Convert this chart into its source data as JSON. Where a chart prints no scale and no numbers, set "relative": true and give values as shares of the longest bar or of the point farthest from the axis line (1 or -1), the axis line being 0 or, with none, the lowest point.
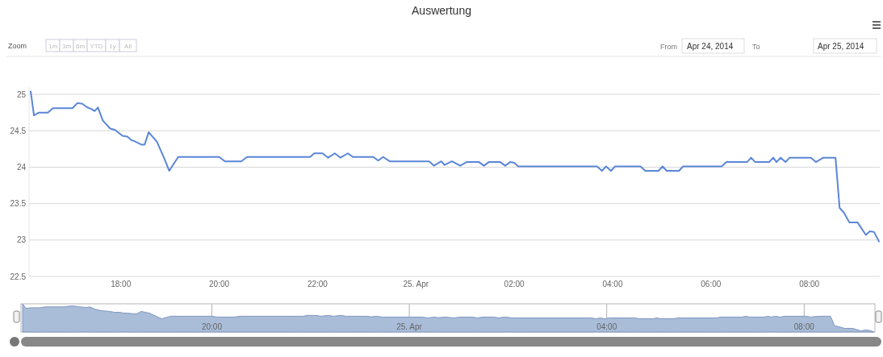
{
  "chart_data": [
    {
      "type": "line",
      "title": "Auswertung",
      "annotations": [
        "Zoom",
        "1m",
        "3m",
        "6m",
        "YTD",
        "1y",
        "All",
        "From",
        "Apr 24, 2014",
        "To",
        "Apr 25, 2014"
      ],
      "x": [
        "2014-04-24T16:10",
        "2014-04-24T16:14",
        "2014-04-24T16:20",
        "2014-04-24T16:31",
        "2014-04-24T16:37",
        "2014-04-24T17:01",
        "2014-04-24T17:07",
        "2014-04-24T17:13",
        "2014-04-24T17:19",
        "2014-04-24T17:24",
        "2014-04-24T17:28",
        "2014-04-24T17:32",
        "2014-04-24T17:38",
        "2014-04-24T17:47",
        "2014-04-24T17:53",
        "2014-04-24T18:02",
        "2014-04-24T18:08",
        "2014-04-24T18:13",
        "2014-04-24T18:16",
        "2014-04-24T18:25",
        "2014-04-24T18:29",
        "2014-04-24T18:34",
        "2014-04-24T18:44",
        "2014-04-24T18:53",
        "2014-04-24T18:59",
        "2014-04-24T19:10",
        "2014-04-24T20:00",
        "2014-04-24T20:07",
        "2014-04-24T20:27",
        "2014-04-24T20:34",
        "2014-04-24T21:51",
        "2014-04-24T21:56",
        "2014-04-24T22:06",
        "2014-04-24T22:13",
        "2014-04-24T22:21",
        "2014-04-24T22:28",
        "2014-04-24T22:37",
        "2014-04-24T22:43",
        "2014-04-24T23:08",
        "2014-04-24T23:14",
        "2014-04-24T23:20",
        "2014-04-24T23:28",
        "2014-04-25T00:16",
        "2014-04-25T00:22",
        "2014-04-25T00:31",
        "2014-04-25T00:35",
        "2014-04-25T00:44",
        "2014-04-25T00:54",
        "2014-04-25T01:02",
        "2014-04-25T01:17",
        "2014-04-25T01:23",
        "2014-04-25T01:29",
        "2014-04-25T01:43",
        "2014-04-25T01:49",
        "2014-04-25T01:55",
        "2014-04-25T02:00",
        "2014-04-25T02:05",
        "2014-04-25T03:41",
        "2014-04-25T03:47",
        "2014-04-25T03:52",
        "2014-04-25T03:58",
        "2014-04-25T04:03",
        "2014-04-25T04:34",
        "2014-04-25T04:40",
        "2014-04-25T04:56",
        "2014-04-25T05:01",
        "2014-04-25T05:06",
        "2014-04-25T05:21",
        "2014-04-25T05:26",
        "2014-04-25T06:13",
        "2014-04-25T06:19",
        "2014-04-25T06:44",
        "2014-04-25T06:49",
        "2014-04-25T06:54",
        "2014-04-25T07:11",
        "2014-04-25T07:16",
        "2014-04-25T07:20",
        "2014-04-25T07:25",
        "2014-04-25T07:31",
        "2014-04-25T07:36",
        "2014-04-25T08:02",
        "2014-04-25T08:08",
        "2014-04-25T08:17",
        "2014-04-25T08:32",
        "2014-04-25T08:37",
        "2014-04-25T08:42",
        "2014-04-25T08:49",
        "2014-04-25T08:59",
        "2014-04-25T09:09",
        "2014-04-25T09:14",
        "2014-04-25T09:19",
        "2014-04-25T09:25"
      ],
      "series": [
        {
          "color": "#5b86d6",
          "values": [
            25.04,
            24.71,
            24.75,
            24.75,
            24.81,
            24.81,
            24.88,
            24.87,
            24.82,
            24.8,
            24.77,
            24.82,
            24.64,
            24.53,
            24.51,
            24.43,
            24.42,
            24.37,
            24.36,
            24.31,
            24.31,
            24.48,
            24.35,
            24.12,
            23.95,
            24.14,
            24.14,
            24.08,
            24.08,
            24.14,
            24.14,
            24.19,
            24.19,
            24.13,
            24.19,
            24.13,
            24.19,
            24.14,
            24.14,
            24.09,
            24.14,
            24.08,
            24.08,
            24.02,
            24.08,
            24.03,
            24.08,
            24.02,
            24.07,
            24.07,
            24.02,
            24.07,
            24.07,
            24.02,
            24.07,
            24.06,
            24.01,
            24.01,
            23.95,
            24.01,
            23.95,
            24.01,
            24.01,
            23.95,
            23.95,
            24.01,
            23.95,
            23.95,
            24.01,
            24.01,
            24.07,
            24.07,
            24.13,
            24.07,
            24.07,
            24.13,
            24.07,
            24.13,
            24.07,
            24.13,
            24.13,
            24.07,
            24.13,
            24.13,
            23.44,
            23.38,
            23.24,
            23.24,
            23.07,
            23.12,
            23.11,
            22.98
          ]
        }
      ],
      "xlim": [
        "2014-04-24T16:08",
        "2014-04-25T09:26"
      ],
      "ylim": [
        22.5,
        25.1
      ],
      "xticks": [
        {
          "value": "2014-04-24T18:00",
          "label": "18:00"
        },
        {
          "value": "2014-04-24T20:00",
          "label": "20:00"
        },
        {
          "value": "2014-04-24T22:00",
          "label": "22:00"
        },
        {
          "value": "2014-04-25T00:00",
          "label": "25. Apr"
        },
        {
          "value": "2014-04-25T02:00",
          "label": "02:00"
        },
        {
          "value": "2014-04-25T04:00",
          "label": "04:00"
        },
        {
          "value": "2014-04-25T06:00",
          "label": "06:00"
        },
        {
          "value": "2014-04-25T08:00",
          "label": "08:00"
        }
      ],
      "yticks": [
        22.5,
        23,
        23.5,
        24,
        24.5,
        25
      ],
      "grid": "y",
      "marker": "none",
      "line_style": "solid"
    },
    {
      "type": "area",
      "relative": true,
      "x": [
        "2014-04-24T16:10",
        "2014-04-24T16:14",
        "2014-04-24T16:20",
        "2014-04-24T16:31",
        "2014-04-24T16:37",
        "2014-04-24T17:01",
        "2014-04-24T17:07",
        "2014-04-24T17:13",
        "2014-04-24T17:19",
        "2014-04-24T17:24",
        "2014-04-24T17:28",
        "2014-04-24T17:32",
        "2014-04-24T17:38",
        "2014-04-24T17:47",
        "2014-04-24T17:53",
        "2014-04-24T18:02",
        "2014-04-24T18:08",
        "2014-04-24T18:13",
        "2014-04-24T18:16",
        "2014-04-24T18:25",
        "2014-04-24T18:29",
        "2014-04-24T18:34",
        "2014-04-24T18:44",
        "2014-04-24T18:53",
        "2014-04-24T18:59",
        "2014-04-24T19:10",
        "2014-04-24T20:00",
        "2014-04-24T20:07",
        "2014-04-24T20:27",
        "2014-04-24T20:34",
        "2014-04-24T21:51",
        "2014-04-24T21:56",
        "2014-04-24T22:06",
        "2014-04-24T22:13",
        "2014-04-24T22:21",
        "2014-04-24T22:28",
        "2014-04-24T22:37",
        "2014-04-24T22:43",
        "2014-04-24T23:08",
        "2014-04-24T23:14",
        "2014-04-24T23:20",
        "2014-04-24T23:28",
        "2014-04-25T00:16",
        "2014-04-25T00:22",
        "2014-04-25T00:31",
        "2014-04-25T00:35",
        "2014-04-25T00:44",
        "2014-04-25T00:54",
        "2014-04-25T01:02",
        "2014-04-25T01:17",
        "2014-04-25T01:23",
        "2014-04-25T01:29",
        "2014-04-25T01:43",
        "2014-04-25T01:49",
        "2014-04-25T01:55",
        "2014-04-25T02:00",
        "2014-04-25T02:05",
        "2014-04-25T03:41",
        "2014-04-25T03:47",
        "2014-04-25T03:52",
        "2014-04-25T03:58",
        "2014-04-25T04:03",
        "2014-04-25T04:34",
        "2014-04-25T04:40",
        "2014-04-25T04:56",
        "2014-04-25T05:01",
        "2014-04-25T05:06",
        "2014-04-25T05:21",
        "2014-04-25T05:26",
        "2014-04-25T06:13",
        "2014-04-25T06:19",
        "2014-04-25T06:44",
        "2014-04-25T06:49",
        "2014-04-25T06:54",
        "2014-04-25T07:11",
        "2014-04-25T07:16",
        "2014-04-25T07:20",
        "2014-04-25T07:25",
        "2014-04-25T07:31",
        "2014-04-25T07:36",
        "2014-04-25T08:02",
        "2014-04-25T08:08",
        "2014-04-25T08:17",
        "2014-04-25T08:32",
        "2014-04-25T08:37",
        "2014-04-25T08:42",
        "2014-04-25T08:49",
        "2014-04-25T08:59",
        "2014-04-25T09:09",
        "2014-04-25T09:14",
        "2014-04-25T09:19",
        "2014-04-25T09:25"
      ],
      "series": [
        {
          "color": "#a9bcd8",
          "values": [
            1,
            0.84,
            0.86,
            0.86,
            0.89,
            0.89,
            0.92,
            0.92,
            0.89,
            0.88,
            0.87,
            0.89,
            0.81,
            0.75,
            0.74,
            0.7,
            0.7,
            0.67,
            0.67,
            0.65,
            0.65,
            0.73,
            0.67,
            0.55,
            0.47,
            0.56,
            0.56,
            0.53,
            0.53,
            0.56,
            0.56,
            0.59,
            0.59,
            0.56,
            0.59,
            0.56,
            0.59,
            0.56,
            0.56,
            0.54,
            0.56,
            0.53,
            0.53,
            0.5,
            0.53,
            0.51,
            0.53,
            0.5,
            0.53,
            0.53,
            0.5,
            0.53,
            0.53,
            0.5,
            0.53,
            0.52,
            0.5,
            0.5,
            0.47,
            0.5,
            0.47,
            0.5,
            0.5,
            0.47,
            0.47,
            0.5,
            0.47,
            0.47,
            0.5,
            0.5,
            0.53,
            0.53,
            0.56,
            0.53,
            0.53,
            0.56,
            0.53,
            0.56,
            0.53,
            0.56,
            0.56,
            0.53,
            0.56,
            0.56,
            0.22,
            0.19,
            0.13,
            0.13,
            0.04,
            0.07,
            0.06,
            0
          ]
        }
      ],
      "xlim": [
        "2014-04-24T16:08",
        "2014-04-25T09:26"
      ],
      "xticks": [
        {
          "value": "2014-04-24T20:00",
          "label": "20:00"
        },
        {
          "value": "2014-04-25T00:00",
          "label": "25. Apr"
        },
        {
          "value": "2014-04-25T04:00",
          "label": "04:00"
        },
        {
          "value": "2014-04-25T08:00",
          "label": "08:00"
        }
      ],
      "grid": "x"
    }
  ]
}
